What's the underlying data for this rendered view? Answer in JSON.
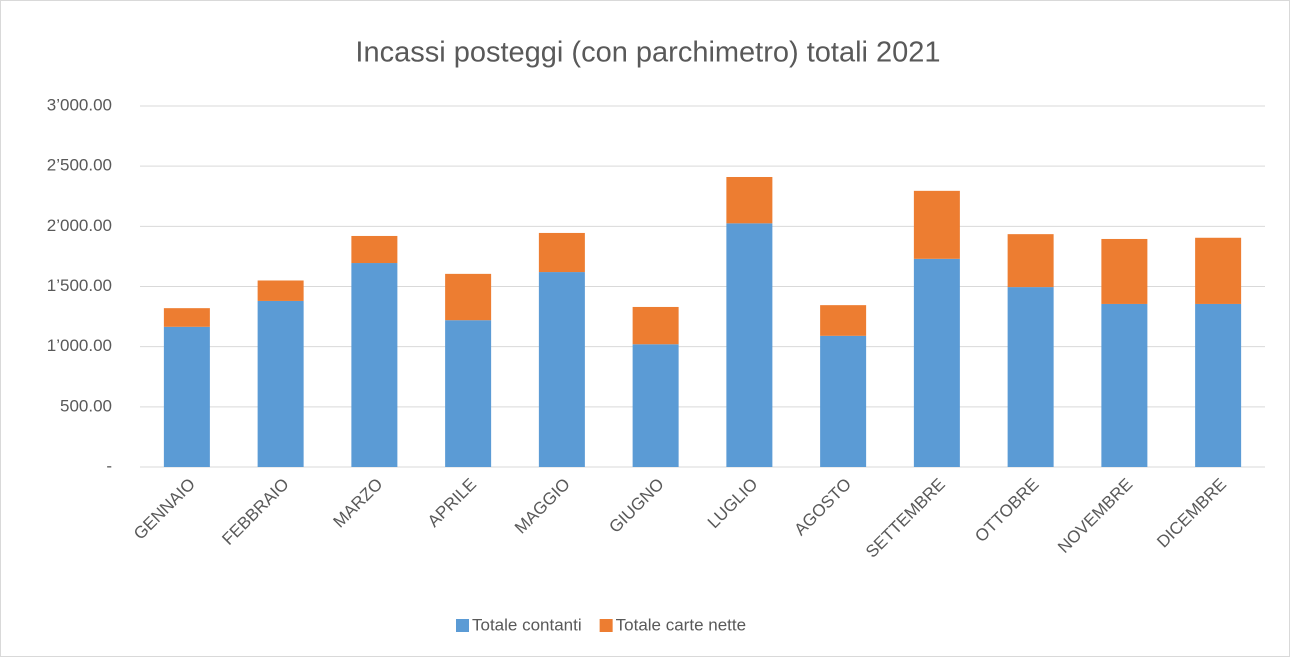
{
  "chart_data": {
    "type": "stacked_bar",
    "title": "Incassi posteggi (con parchimetro) totali 2021",
    "categories": [
      "GENNAIO",
      "FEBBRAIO",
      "MARZO",
      "APRILE",
      "MAGGIO",
      "GIUGNO",
      "LUGLIO",
      "AGOSTO",
      "SETTEMBRE",
      "OTTOBRE",
      "NOVEMBRE",
      "DICEMBRE"
    ],
    "series": [
      {
        "name": "Totale contanti",
        "color": "#5b9bd5",
        "values": [
          1165,
          1380,
          1695,
          1220,
          1620,
          1020,
          2025,
          1090,
          1730,
          1495,
          1355,
          1355
        ]
      },
      {
        "name": "Totale carte nette",
        "color": "#ed7d31",
        "values": [
          155,
          170,
          225,
          385,
          325,
          310,
          385,
          255,
          565,
          440,
          540,
          550
        ]
      }
    ],
    "ylim": [
      0,
      3000
    ],
    "yticks": [
      {
        "value": 0,
        "label": "-"
      },
      {
        "value": 500,
        "label": "500.00"
      },
      {
        "value": 1000,
        "label": "1’000.00"
      },
      {
        "value": 1500,
        "label": "1’500.00"
      },
      {
        "value": 2000,
        "label": "2’000.00"
      },
      {
        "value": 2500,
        "label": "2’500.00"
      },
      {
        "value": 3000,
        "label": "3’000.00"
      }
    ],
    "grid": true,
    "legend": "bottom"
  }
}
